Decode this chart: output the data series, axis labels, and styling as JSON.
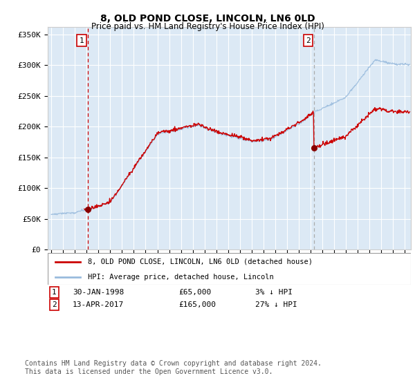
{
  "title": "8, OLD POND CLOSE, LINCOLN, LN6 0LD",
  "subtitle": "Price paid vs. HM Land Registry's House Price Index (HPI)",
  "ylabel_ticks": [
    "£0",
    "£50K",
    "£100K",
    "£150K",
    "£200K",
    "£250K",
    "£300K",
    "£350K"
  ],
  "ytick_vals": [
    0,
    50000,
    100000,
    150000,
    200000,
    250000,
    300000,
    350000
  ],
  "ylim": [
    0,
    362000
  ],
  "xlim_start": 1994.7,
  "xlim_end": 2025.5,
  "transaction1": {
    "date_label": "30-JAN-1998",
    "year": 1998.08,
    "price": 65000,
    "pct": "3%",
    "dir": "↓"
  },
  "transaction2": {
    "date_label": "13-APR-2017",
    "year": 2017.28,
    "price": 165000,
    "pct": "27%",
    "dir": "↓"
  },
  "legend_line1": "8, OLD POND CLOSE, LINCOLN, LN6 0LD (detached house)",
  "legend_line2": "HPI: Average price, detached house, Lincoln",
  "footnote1": "Contains HM Land Registry data © Crown copyright and database right 2024.",
  "footnote2": "This data is licensed under the Open Government Licence v3.0.",
  "bg_color": "#dce9f5",
  "grid_color": "#ffffff",
  "red_line_color": "#cc0000",
  "blue_line_color": "#99bbdd",
  "dashed_line_color1": "#cc0000",
  "dashed_line_color2": "#aaaaaa",
  "marker_color": "#880000"
}
